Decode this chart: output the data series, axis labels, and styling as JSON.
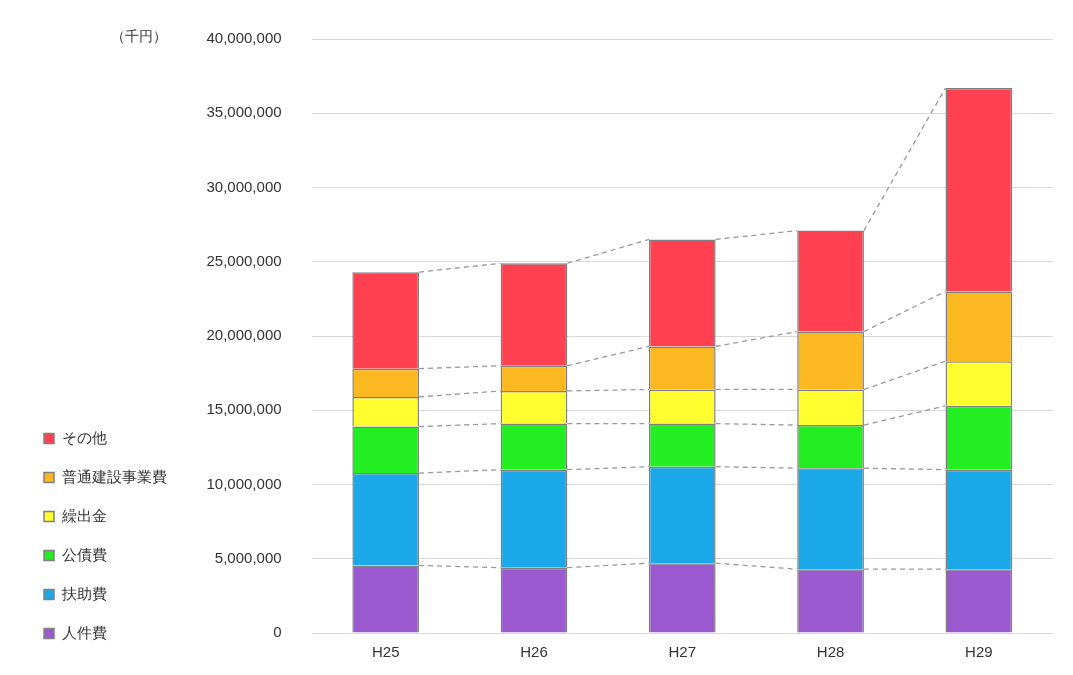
{
  "chart_data": {
    "type": "bar",
    "stacked": true,
    "ylabel": "（千円）",
    "categories": [
      "H25",
      "H26",
      "H27",
      "H28",
      "H29"
    ],
    "series": [
      {
        "name": "人件費",
        "color": "#9b59d0",
        "values": [
          4550000,
          4400000,
          4700000,
          4300000,
          4300000
        ]
      },
      {
        "name": "扶助費",
        "color": "#1aa8e8",
        "values": [
          6220000,
          6600000,
          6500000,
          6800000,
          6700000
        ]
      },
      {
        "name": "公債費",
        "color": "#22ee22",
        "values": [
          3130000,
          3100000,
          2900000,
          2900000,
          4300000
        ]
      },
      {
        "name": "繰出金",
        "color": "#ffff30",
        "values": [
          2000000,
          2200000,
          2300000,
          2400000,
          3000000
        ]
      },
      {
        "name": "普通建設事業費",
        "color": "#fbb820",
        "values": [
          1900000,
          1700000,
          2900000,
          3900000,
          4700000
        ]
      },
      {
        "name": "その他",
        "color": "#ff4050",
        "values": [
          6500000,
          6900000,
          7200000,
          6800000,
          13700000
        ]
      }
    ],
    "ylim": [
      0,
      40000000
    ],
    "yticks": [
      {
        "value": 0,
        "label": "0"
      },
      {
        "value": 5000000,
        "label": "5,000,000"
      },
      {
        "value": 10000000,
        "label": "10,000,000"
      },
      {
        "value": 15000000,
        "label": "15,000,000"
      },
      {
        "value": 20000000,
        "label": "20,000,000"
      },
      {
        "value": 25000000,
        "label": "25,000,000"
      },
      {
        "value": 30000000,
        "label": "30,000,000"
      },
      {
        "value": 35000000,
        "label": "35,000,000"
      },
      {
        "value": 40000000,
        "label": "40,000,000"
      }
    ],
    "grid": "y",
    "legend": "bottom left"
  }
}
